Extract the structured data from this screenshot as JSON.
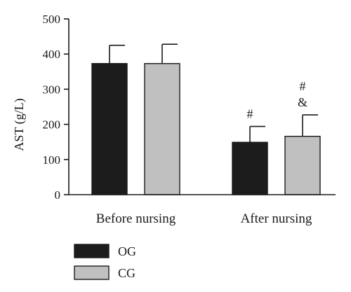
{
  "chart_data": {
    "type": "bar",
    "categories": [
      "Before nursing",
      "After nursing"
    ],
    "ylabel": "AST (g/L)",
    "ylim": [
      0,
      500
    ],
    "yticks": [
      "0",
      "100",
      "200",
      "300",
      "400",
      "500"
    ],
    "grid": false,
    "legend_position": "bottom-left",
    "series": [
      {
        "name": "OG",
        "color": "#1c1c1c",
        "values": [
          373,
          149
        ],
        "errors": [
          52,
          45
        ],
        "annotations": [
          "",
          "#"
        ]
      },
      {
        "name": "CG",
        "color": "#c0c0c0",
        "values": [
          373,
          166
        ],
        "errors": [
          55,
          61
        ],
        "annotations": [
          "",
          "#\n&"
        ]
      }
    ]
  }
}
